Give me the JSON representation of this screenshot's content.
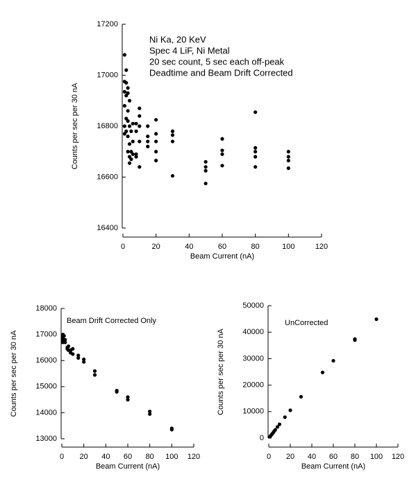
{
  "chart_data": [
    {
      "type": "scatter",
      "color": "#000000",
      "annotations": [
        "Ni Ka, 20 KeV",
        "Spec 4 LiF, Ni Metal",
        "20 sec count, 5 sec each off-peak",
        "Deadtime and Beam Drift Corrected"
      ],
      "xlabel": "Beam Current (nA)",
      "ylabel": "Counts per sec per 30 nA",
      "x": [
        1,
        1,
        1,
        1,
        1,
        1,
        2,
        2,
        2,
        2,
        2,
        3,
        3,
        3,
        3,
        3,
        3,
        4,
        4,
        4,
        4,
        4,
        5,
        5,
        5,
        6,
        6,
        6,
        8,
        8,
        8,
        8,
        10,
        10,
        10,
        10,
        10,
        15,
        15,
        15,
        15,
        20,
        20,
        20,
        20,
        20,
        30,
        30,
        30,
        30,
        50,
        50,
        50,
        50,
        60,
        60,
        60,
        60,
        80,
        80,
        80,
        80,
        80,
        100,
        100,
        100,
        100
      ],
      "values": [
        17080,
        16975,
        16935,
        16880,
        16800,
        16770,
        17020,
        16970,
        16920,
        16830,
        16780,
        16950,
        16930,
        16860,
        16820,
        16760,
        16700,
        16900,
        16800,
        16730,
        16680,
        16655,
        16780,
        16700,
        16670,
        16810,
        16740,
        16690,
        16810,
        16780,
        16690,
        16680,
        16870,
        16840,
        16800,
        16740,
        16640,
        16800,
        16760,
        16740,
        16720,
        16825,
        16770,
        16740,
        16700,
        16665,
        16780,
        16765,
        16740,
        16605,
        16660,
        16640,
        16625,
        16575,
        16750,
        16705,
        16690,
        16645,
        16855,
        16715,
        16700,
        16680,
        16640,
        16700,
        16680,
        16665,
        16635
      ],
      "xlim": [
        0,
        120
      ],
      "xticks": [
        0,
        20,
        40,
        60,
        80,
        100,
        120
      ],
      "ylim": [
        16400,
        17200
      ],
      "yticks": [
        16400,
        16600,
        16800,
        17000,
        17200
      ]
    },
    {
      "type": "scatter",
      "color": "#000000",
      "annotations": [
        "Beam Drift Corrected Only"
      ],
      "xlabel": "Beam Current (nA)",
      "ylabel": "Counts per sec per 30 nA",
      "x": [
        1,
        1,
        1,
        1,
        2,
        2,
        3,
        3,
        5,
        5,
        6,
        6,
        8,
        8,
        10,
        10,
        15,
        15,
        20,
        20,
        30,
        30,
        50,
        50,
        60,
        60,
        80,
        80,
        100,
        100
      ],
      "values": [
        17000,
        16900,
        16800,
        16700,
        16950,
        16750,
        16800,
        16700,
        16500,
        16450,
        16550,
        16400,
        16400,
        16300,
        16450,
        16250,
        16200,
        16100,
        16050,
        15950,
        15600,
        15450,
        14850,
        14800,
        14600,
        14500,
        14050,
        13950,
        13400,
        13350
      ],
      "xlim": [
        0,
        120
      ],
      "xticks": [
        0,
        20,
        40,
        60,
        80,
        100,
        120
      ],
      "ylim": [
        13000,
        18000
      ],
      "yticks": [
        13000,
        14000,
        15000,
        16000,
        17000,
        18000
      ]
    },
    {
      "type": "scatter",
      "color": "#000000",
      "annotations": [
        "UnCorrected"
      ],
      "xlabel": "Beam Current (nA)",
      "ylabel": "Counts per sec per 30 nA",
      "x": [
        1,
        2,
        3,
        4,
        5,
        6,
        8,
        10,
        15,
        20,
        30,
        50,
        60,
        80,
        80,
        100
      ],
      "values": [
        500,
        1000,
        1500,
        2000,
        2600,
        3100,
        4200,
        5200,
        7900,
        10500,
        15600,
        24800,
        29200,
        37000,
        37400,
        44900
      ],
      "xlim": [
        0,
        120
      ],
      "xticks": [
        0,
        20,
        40,
        60,
        80,
        100,
        120
      ],
      "ylim": [
        0,
        50000
      ],
      "yticks": [
        0,
        10000,
        20000,
        30000,
        40000,
        50000
      ]
    }
  ]
}
